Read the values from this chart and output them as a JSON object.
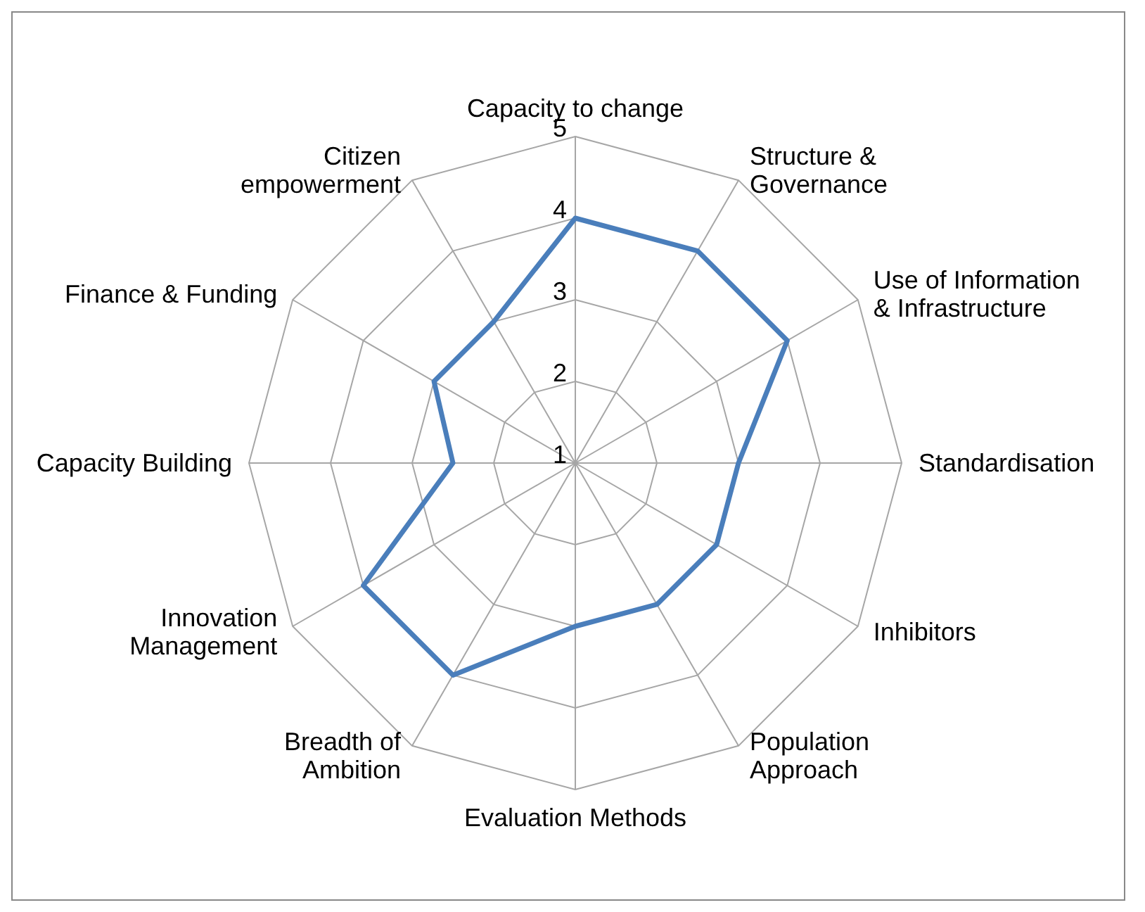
{
  "chart_data": {
    "type": "radar",
    "categories": [
      "Capacity to change",
      "Structure & Governance",
      "Use of Information & Infrastructure",
      "Standardisation",
      "Inhibitors",
      "Population Approach",
      "Evaluation Methods",
      "Breadth of Ambition",
      "Innovation Management",
      "Capacity Building",
      "Finance & Funding",
      "Citizen empowerment"
    ],
    "series": [
      {
        "color": "#4a7ebb",
        "values": [
          4,
          4,
          4,
          3,
          3,
          3,
          3,
          4,
          4,
          2.5,
          3,
          3
        ]
      }
    ],
    "ylim": [
      1,
      5
    ],
    "yticks": [
      1,
      2,
      3,
      4,
      5
    ],
    "grid": true,
    "legend": false,
    "marker": "none"
  }
}
